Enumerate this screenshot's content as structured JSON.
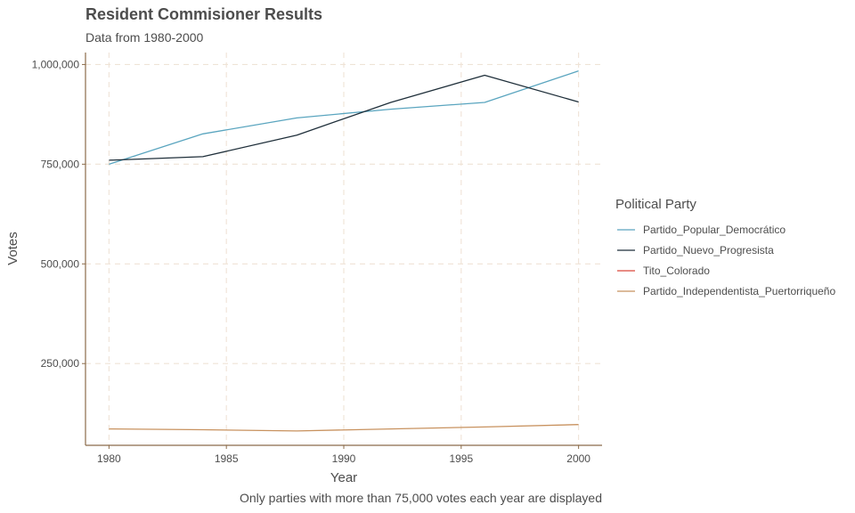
{
  "chart_data": {
    "type": "line",
    "title": "Resident Commisioner Results",
    "subtitle": "Data from 1980-2000",
    "xlabel": "Year",
    "ylabel": "Votes",
    "caption": "Only parties with more than 75,000 votes each year are displayed",
    "xlim": [
      1979,
      2001
    ],
    "ylim": [
      45000,
      1030000
    ],
    "x_ticks": [
      1980,
      1985,
      1990,
      1995,
      2000
    ],
    "x_tick_labels": [
      "1980",
      "1985",
      "1990",
      "1995",
      "2000"
    ],
    "y_ticks": [
      250000,
      500000,
      750000,
      1000000
    ],
    "y_tick_labels": [
      "250,000",
      "500,000",
      "750,000",
      "1,000,000"
    ],
    "grid": true,
    "legend_title": "Political Party",
    "legend_position": "right",
    "series": [
      {
        "name": "Partido_Popular_Democrático",
        "color": "#5aa5bf",
        "x": [
          1980,
          1984,
          1988,
          1992,
          1996,
          2000
        ],
        "y": [
          750000,
          826000,
          866000,
          888000,
          905000,
          984000
        ]
      },
      {
        "name": "Partido_Nuevo_Progresista",
        "color": "#1f2f3a",
        "x": [
          1980,
          1984,
          1988,
          1992,
          1996,
          2000
        ],
        "y": [
          760000,
          769000,
          823000,
          905000,
          973000,
          906000
        ]
      },
      {
        "name": "Tito_Colorado",
        "color": "#d9483b",
        "x": [],
        "y": []
      },
      {
        "name": "Partido_Independentista_Puertorriqueño",
        "color": "#c8925f",
        "x": [
          1980,
          1984,
          1988,
          1992,
          1996,
          2000
        ],
        "y": [
          86000,
          84000,
          81000,
          86000,
          91000,
          97000
        ]
      }
    ]
  }
}
